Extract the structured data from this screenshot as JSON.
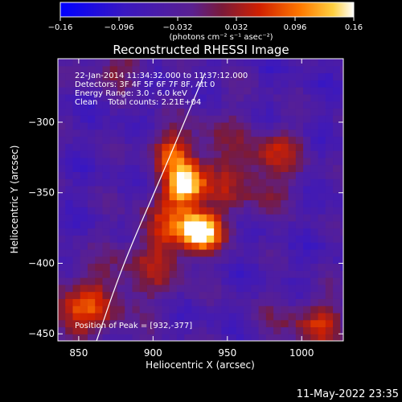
{
  "chart_data": {
    "type": "heatmap",
    "title": "Reconstructed RHESSI Image",
    "xlabel": "Heliocentric X (arcsec)",
    "ylabel": "Heliocentric Y (arcsec)",
    "xlim": [
      836,
      1028
    ],
    "ylim": [
      -455,
      -255
    ],
    "x_ticks": [
      850,
      900,
      950,
      1000
    ],
    "y_ticks": [
      -300,
      -350,
      -400,
      -450
    ],
    "x_tick_labels": [
      "850",
      "900",
      "950",
      "1000"
    ],
    "y_tick_labels": [
      "−300",
      "−350",
      "−400",
      "−450"
    ],
    "colorbar": {
      "range": [
        -0.16,
        0.16
      ],
      "ticks": [
        -0.16,
        -0.096,
        -0.032,
        0.032,
        0.096,
        0.16
      ],
      "tick_labels": [
        "−0.16",
        "−0.096",
        "−0.032",
        "0.032",
        "0.096",
        "0.16"
      ],
      "units_label": "(photons cm⁻² s⁻¹ asec⁻²)"
    },
    "annotations": {
      "time_range": "22-Jan-2014 11:34:32.000 to 11:37:12.000",
      "detectors": "Detectors: 3F 4F 5F 6F 7F 8F, Att 0",
      "energy": "Energy Range: 3.0 - 6.0 keV",
      "clean": "Clean    Total counts: 2.21E+04",
      "peak": "Position of Peak = [932,-377]"
    },
    "peak_position": [
      932,
      -377
    ],
    "sources": [
      {
        "x": 932,
        "y": -377,
        "peak": 0.16
      },
      {
        "x": 922,
        "y": -343,
        "peak": 0.11
      },
      {
        "x": 910,
        "y": -315,
        "peak": 0.06
      }
    ],
    "limb_curve": [
      [
        862,
        -455
      ],
      [
        880,
        -400
      ],
      [
        905,
        -340
      ],
      [
        935,
        -265
      ]
    ]
  },
  "footer": {
    "date": "11-May-2022 23:35"
  },
  "colors": {
    "background": "#000000",
    "text": "#ffffff"
  }
}
